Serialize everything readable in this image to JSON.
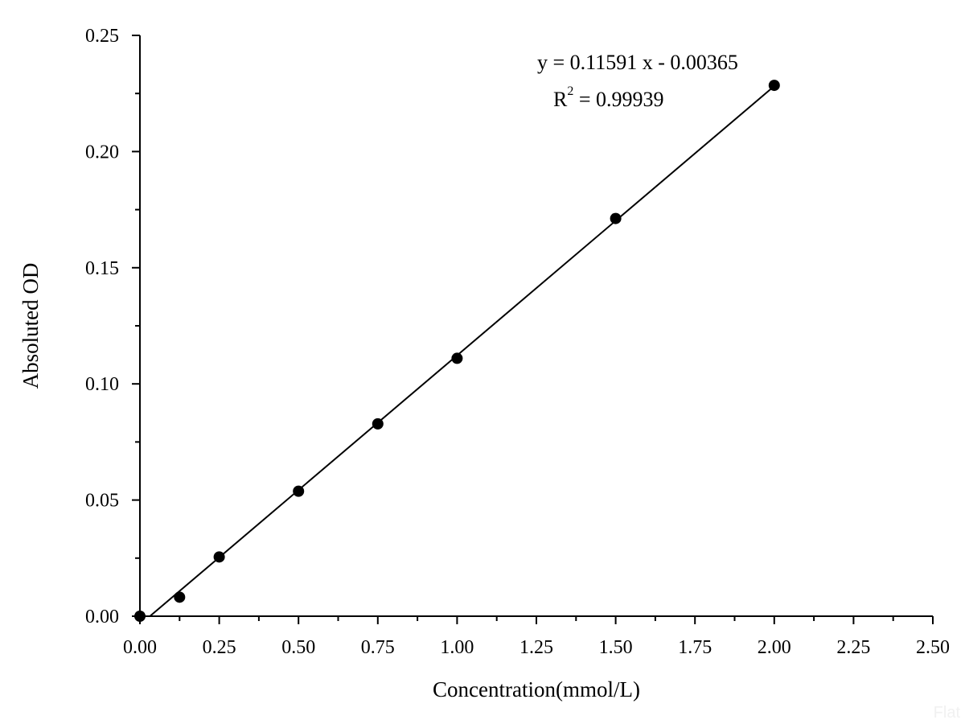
{
  "chart_data": {
    "type": "scatter",
    "title": "",
    "xlabel": "Concentration(mmol/L)",
    "ylabel": "Absoluted OD",
    "xlim": [
      0,
      2.5
    ],
    "ylim": [
      0,
      0.25
    ],
    "x_ticks": [
      "0.00",
      "0.25",
      "0.50",
      "0.75",
      "1.00",
      "1.25",
      "1.50",
      "1.75",
      "2.00",
      "2.25",
      "2.50"
    ],
    "y_ticks": [
      "0.00",
      "0.05",
      "0.10",
      "0.15",
      "0.20",
      "0.25"
    ],
    "series": [
      {
        "x": [
          0,
          0.125,
          0.25,
          0.5,
          0.75,
          1.0,
          1.5,
          2.0
        ],
        "y": [
          0.0,
          0.0082,
          0.0255,
          0.0538,
          0.0828,
          0.111,
          0.1712,
          0.2285
        ]
      }
    ],
    "fit": {
      "slope": 0.11591,
      "intercept": -0.00365
    },
    "equation_label": "y = 0.11591 x - 0.00365",
    "r2_label": {
      "base": "R",
      "sup": "2",
      "rest": " = 0.99939"
    },
    "grid": false,
    "marker_color": "#000000"
  },
  "watermark": "Flat"
}
